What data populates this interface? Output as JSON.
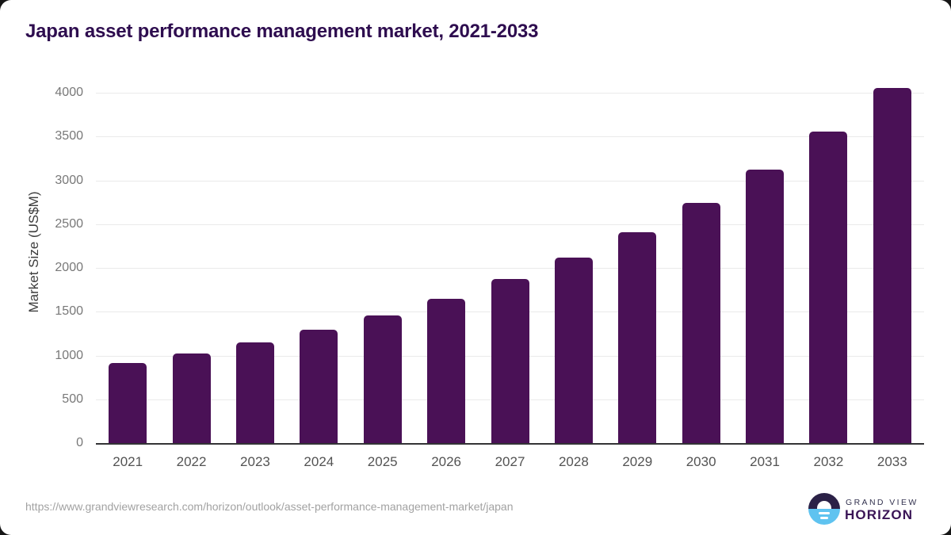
{
  "header": {
    "title": "Japan asset performance management market, 2021-2033"
  },
  "chart_data": {
    "type": "bar",
    "title": "Japan asset performance management market, 2021-2033",
    "categories": [
      "2021",
      "2022",
      "2023",
      "2024",
      "2025",
      "2026",
      "2027",
      "2028",
      "2029",
      "2030",
      "2031",
      "2032",
      "2033"
    ],
    "values": [
      915,
      1025,
      1150,
      1295,
      1455,
      1650,
      1870,
      2120,
      2410,
      2745,
      3120,
      3560,
      4055
    ],
    "xlabel": "",
    "ylabel": "Market Size (US$M)",
    "ylim": [
      0,
      4000
    ],
    "yticks": [
      0,
      500,
      1000,
      1500,
      2000,
      2500,
      3000,
      3500,
      4000
    ],
    "grid": true,
    "legend": "none",
    "bar_color": "#4a1156"
  },
  "source": {
    "url": "https://www.grandviewresearch.com/horizon/outlook/asset-performance-management-market/japan"
  },
  "brand": {
    "logo_icon": "horizon-sun-icon",
    "name_top": "GRAND VIEW",
    "name_bottom": "HORIZON"
  },
  "theme": {
    "bar": "#4a1156",
    "title": "#2e0d4f",
    "axis_line": "#333336",
    "gridline": "#eaeaea",
    "tick_label": "#787878",
    "axis_label": "#3c3c3c",
    "x_label": "#535353",
    "url": "#a2a2a2",
    "brand_navy": "#33324f",
    "brand_purple": "#3a1556",
    "logo_blue": "#5fc3f0",
    "logo_dark": "#2b2147"
  }
}
